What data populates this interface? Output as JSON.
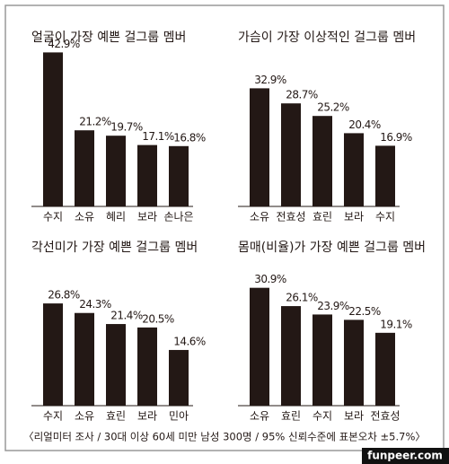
{
  "chart_data": [
    {
      "type": "bar",
      "title": "얼굴이 가장 예쁜 걸그룹 멤버",
      "categories": [
        "수지",
        "소유",
        "혜리",
        "보라",
        "손나은"
      ],
      "values": [
        42.9,
        21.2,
        19.7,
        17.1,
        16.8
      ],
      "value_labels": [
        "42.9%",
        "21.2%",
        "19.7%",
        "17.1%",
        "16.8%"
      ],
      "color": "#231815"
    },
    {
      "type": "bar",
      "title": "가슴이 가장 이상적인 걸그룹 멤버",
      "categories": [
        "소유",
        "전효성",
        "효린",
        "보라",
        "수지"
      ],
      "values": [
        32.9,
        28.7,
        25.2,
        20.4,
        16.9
      ],
      "value_labels": [
        "32.9%",
        "28.7%",
        "25.2%",
        "20.4%",
        "16.9%"
      ],
      "color": "#231815"
    },
    {
      "type": "bar",
      "title": "각선미가 가장 예쁜 걸그룹 멤버",
      "categories": [
        "수지",
        "소유",
        "효린",
        "보라",
        "민아"
      ],
      "values": [
        26.8,
        24.3,
        21.4,
        20.5,
        14.6
      ],
      "value_labels": [
        "26.8%",
        "24.3%",
        "21.4%",
        "20.5%",
        "14.6%"
      ],
      "color": "#231815"
    },
    {
      "type": "bar",
      "title": "몸매(비율)가 가장 예쁜 걸그룹 멤버",
      "categories": [
        "소유",
        "효린",
        "수지",
        "보라",
        "전효성"
      ],
      "values": [
        30.9,
        26.1,
        23.9,
        22.5,
        19.1
      ],
      "value_labels": [
        "30.9%",
        "26.1%",
        "23.9%",
        "22.5%",
        "19.1%"
      ],
      "color": "#231815"
    }
  ],
  "footer": "〈리얼미터 조사 / 30대 이상 60세 미만 남성 300명 / 95% 신뢰수준에 표본오차 ±5.7%〉",
  "watermark": "funpeer.com"
}
